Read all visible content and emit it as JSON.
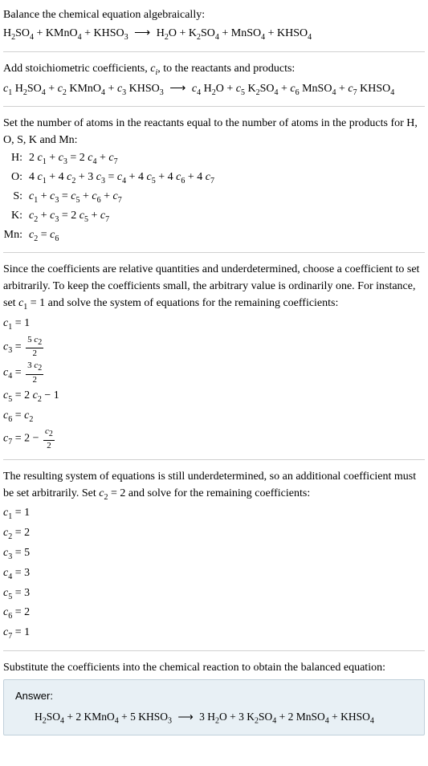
{
  "colors": {
    "background": "#ffffff",
    "text": "#000000",
    "hr": "#d0d0d0",
    "answer_bg": "#e8f0f5",
    "answer_border": "#c0d0da"
  },
  "s1": {
    "title": "Balance the chemical equation algebraically:",
    "eq_html": "H<sub>2</sub>SO<sub>4</sub> + KMnO<sub>4</sub> + KHSO<sub>3</sub> <span class='arrow'>⟶</span> H<sub>2</sub>O + K<sub>2</sub>SO<sub>4</sub> + MnSO<sub>4</sub> + KHSO<sub>4</sub>"
  },
  "s2": {
    "title_html": "Add stoichiometric coefficients, <span class='italic'>c<sub>i</sub></span>, to the reactants and products:",
    "eq_html": "<span class='italic'>c</span><sub>1</sub> H<sub>2</sub>SO<sub>4</sub> + <span class='italic'>c</span><sub>2</sub> KMnO<sub>4</sub> + <span class='italic'>c</span><sub>3</sub> KHSO<sub>3</sub> <span class='arrow'>⟶</span> <span class='italic'>c</span><sub>4</sub> H<sub>2</sub>O + <span class='italic'>c</span><sub>5</sub> K<sub>2</sub>SO<sub>4</sub> + <span class='italic'>c</span><sub>6</sub> MnSO<sub>4</sub> + <span class='italic'>c</span><sub>7</sub> KHSO<sub>4</sub>"
  },
  "s3": {
    "title": "Set the number of atoms in the reactants equal to the number of atoms in the products for H, O, S, K and Mn:",
    "rows": [
      {
        "el": "H:",
        "eq": "2 <span class='italic'>c</span><sub>1</sub> + <span class='italic'>c</span><sub>3</sub> = 2 <span class='italic'>c</span><sub>4</sub> + <span class='italic'>c</span><sub>7</sub>"
      },
      {
        "el": "O:",
        "eq": "4 <span class='italic'>c</span><sub>1</sub> + 4 <span class='italic'>c</span><sub>2</sub> + 3 <span class='italic'>c</span><sub>3</sub> = <span class='italic'>c</span><sub>4</sub> + 4 <span class='italic'>c</span><sub>5</sub> + 4 <span class='italic'>c</span><sub>6</sub> + 4 <span class='italic'>c</span><sub>7</sub>"
      },
      {
        "el": "S:",
        "eq": "<span class='italic'>c</span><sub>1</sub> + <span class='italic'>c</span><sub>3</sub> = <span class='italic'>c</span><sub>5</sub> + <span class='italic'>c</span><sub>6</sub> + <span class='italic'>c</span><sub>7</sub>"
      },
      {
        "el": "K:",
        "eq": "<span class='italic'>c</span><sub>2</sub> + <span class='italic'>c</span><sub>3</sub> = 2 <span class='italic'>c</span><sub>5</sub> + <span class='italic'>c</span><sub>7</sub>"
      },
      {
        "el": "Mn:",
        "eq": "<span class='italic'>c</span><sub>2</sub> = <span class='italic'>c</span><sub>6</sub>"
      }
    ]
  },
  "s4": {
    "title_html": "Since the coefficients are relative quantities and underdetermined, choose a coefficient to set arbitrarily. To keep the coefficients small, the arbitrary value is ordinarily one. For instance, set <span class='italic'>c</span><sub>1</sub> = 1 and solve the system of equations for the remaining coefficients:",
    "lines": [
      "<span class='italic'>c</span><sub>1</sub> = 1",
      "<span class='italic'>c</span><sub>3</sub> = <span class='frac'><span class='frac-top'>5 <span class='italic'>c</span><sub>2</sub></span><span class='frac-bot'>2</span></span>",
      "<span class='italic'>c</span><sub>4</sub> = <span class='frac'><span class='frac-top'>3 <span class='italic'>c</span><sub>2</sub></span><span class='frac-bot'>2</span></span>",
      "<span class='italic'>c</span><sub>5</sub> = 2 <span class='italic'>c</span><sub>2</sub> − 1",
      "<span class='italic'>c</span><sub>6</sub> = <span class='italic'>c</span><sub>2</sub>",
      "<span class='italic'>c</span><sub>7</sub> = 2 − <span class='frac'><span class='frac-top'><span class='italic'>c</span><sub>2</sub></span><span class='frac-bot'>2</span></span>"
    ]
  },
  "s5": {
    "title_html": "The resulting system of equations is still underdetermined, so an additional coefficient must be set arbitrarily. Set <span class='italic'>c</span><sub>2</sub> = 2 and solve for the remaining coefficients:",
    "lines": [
      "<span class='italic'>c</span><sub>1</sub> = 1",
      "<span class='italic'>c</span><sub>2</sub> = 2",
      "<span class='italic'>c</span><sub>3</sub> = 5",
      "<span class='italic'>c</span><sub>4</sub> = 3",
      "<span class='italic'>c</span><sub>5</sub> = 3",
      "<span class='italic'>c</span><sub>6</sub> = 2",
      "<span class='italic'>c</span><sub>7</sub> = 1"
    ]
  },
  "s6": {
    "title": "Substitute the coefficients into the chemical reaction to obtain the balanced equation:",
    "answer_label": "Answer:",
    "answer_eq_html": "H<sub>2</sub>SO<sub>4</sub> + 2 KMnO<sub>4</sub> + 5 KHSO<sub>3</sub> <span class='arrow'>⟶</span> 3 H<sub>2</sub>O + 3 K<sub>2</sub>SO<sub>4</sub> + 2 MnSO<sub>4</sub> + KHSO<sub>4</sub>"
  }
}
